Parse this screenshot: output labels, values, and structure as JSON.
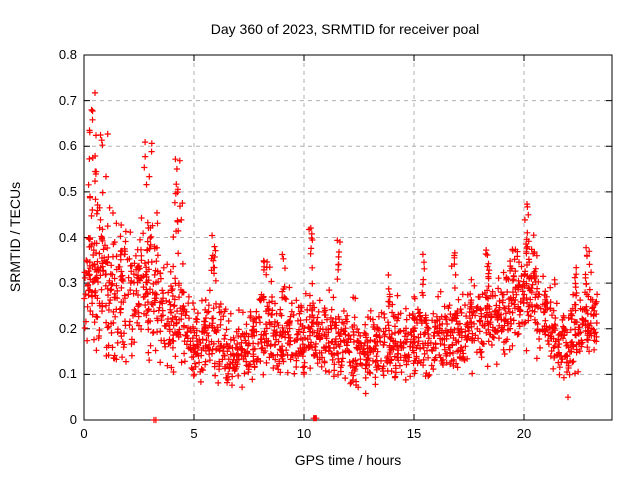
{
  "title": "Day 360 of 2023, SRMTID for receiver poal",
  "chart_data": {
    "type": "scatter",
    "title": "Day 360 of 2023, SRMTID for receiver poal",
    "xlabel": "GPS time / hours",
    "ylabel": "SRMTID / TECUs",
    "xlim": [
      0,
      24
    ],
    "ylim": [
      0,
      0.8
    ],
    "xticks": [
      0,
      5,
      10,
      15,
      20
    ],
    "yticks": [
      0,
      0.1,
      0.2,
      0.3,
      0.4,
      0.5,
      0.6,
      0.7,
      0.8
    ],
    "xtick_labels": [
      "0",
      "5",
      "10",
      "15",
      "20"
    ],
    "ytick_labels": [
      "0",
      "0.1",
      "0.2",
      "0.3",
      "0.4",
      "0.5",
      "0.6",
      "0.7",
      "0.8"
    ],
    "grid": "dashed-major",
    "legend": "none",
    "marker": "plus",
    "marker_color": "#ff0000",
    "grid_color": "#b0b0b0",
    "axis_color": "#000000",
    "background_color": "#ffffff",
    "seed": 2023360,
    "profile_format": "band_profile rows = [hour_start, hour_width, n_points, y_center, y_sigma, y_min, y_max] estimated from pixels",
    "band_profile": [
      [
        0.0,
        0.5,
        44,
        0.3,
        0.08,
        0.17,
        0.5
      ],
      [
        0.5,
        0.5,
        46,
        0.31,
        0.09,
        0.15,
        0.52
      ],
      [
        1.0,
        0.5,
        44,
        0.28,
        0.08,
        0.13,
        0.5
      ],
      [
        1.5,
        0.5,
        42,
        0.27,
        0.08,
        0.12,
        0.48
      ],
      [
        2.0,
        0.5,
        42,
        0.27,
        0.07,
        0.12,
        0.46
      ],
      [
        2.5,
        0.5,
        42,
        0.28,
        0.08,
        0.12,
        0.5
      ],
      [
        3.0,
        0.5,
        44,
        0.28,
        0.09,
        0.1,
        0.55
      ],
      [
        3.5,
        0.5,
        40,
        0.22,
        0.06,
        0.1,
        0.38
      ],
      [
        4.0,
        0.5,
        40,
        0.22,
        0.06,
        0.1,
        0.4
      ],
      [
        4.5,
        0.5,
        40,
        0.19,
        0.05,
        0.08,
        0.33
      ],
      [
        5.0,
        0.5,
        40,
        0.17,
        0.05,
        0.08,
        0.3
      ],
      [
        5.5,
        0.5,
        40,
        0.19,
        0.05,
        0.09,
        0.36
      ],
      [
        6.0,
        0.5,
        40,
        0.17,
        0.05,
        0.08,
        0.32
      ],
      [
        6.5,
        0.5,
        40,
        0.15,
        0.04,
        0.07,
        0.26
      ],
      [
        7.0,
        0.5,
        40,
        0.16,
        0.04,
        0.07,
        0.28
      ],
      [
        7.5,
        0.5,
        40,
        0.17,
        0.05,
        0.08,
        0.3
      ],
      [
        8.0,
        0.5,
        42,
        0.19,
        0.05,
        0.09,
        0.33
      ],
      [
        8.5,
        0.5,
        42,
        0.18,
        0.05,
        0.09,
        0.32
      ],
      [
        9.0,
        0.5,
        42,
        0.19,
        0.05,
        0.1,
        0.34
      ],
      [
        9.5,
        0.5,
        40,
        0.17,
        0.05,
        0.08,
        0.31
      ],
      [
        10.0,
        0.5,
        42,
        0.19,
        0.05,
        0.1,
        0.35
      ],
      [
        10.5,
        0.5,
        42,
        0.19,
        0.05,
        0.1,
        0.33
      ],
      [
        11.0,
        0.5,
        42,
        0.18,
        0.05,
        0.09,
        0.34
      ],
      [
        11.5,
        0.5,
        40,
        0.17,
        0.05,
        0.08,
        0.32
      ],
      [
        12.0,
        0.5,
        40,
        0.16,
        0.05,
        0.07,
        0.3
      ],
      [
        12.5,
        0.5,
        40,
        0.15,
        0.05,
        0.05,
        0.28
      ],
      [
        13.0,
        0.5,
        40,
        0.16,
        0.05,
        0.06,
        0.3
      ],
      [
        13.5,
        0.5,
        40,
        0.17,
        0.05,
        0.08,
        0.31
      ],
      [
        14.0,
        0.5,
        40,
        0.18,
        0.05,
        0.09,
        0.32
      ],
      [
        14.5,
        0.5,
        40,
        0.17,
        0.05,
        0.08,
        0.31
      ],
      [
        15.0,
        0.5,
        42,
        0.19,
        0.05,
        0.1,
        0.34
      ],
      [
        15.5,
        0.5,
        40,
        0.18,
        0.05,
        0.09,
        0.32
      ],
      [
        16.0,
        0.5,
        40,
        0.19,
        0.05,
        0.1,
        0.34
      ],
      [
        16.5,
        0.5,
        40,
        0.2,
        0.05,
        0.1,
        0.36
      ],
      [
        17.0,
        0.5,
        40,
        0.19,
        0.05,
        0.1,
        0.34
      ],
      [
        17.5,
        0.5,
        40,
        0.21,
        0.05,
        0.1,
        0.37
      ],
      [
        18.0,
        0.5,
        42,
        0.23,
        0.06,
        0.11,
        0.38
      ],
      [
        18.5,
        0.5,
        40,
        0.22,
        0.05,
        0.1,
        0.37
      ],
      [
        19.0,
        0.5,
        42,
        0.24,
        0.06,
        0.12,
        0.4
      ],
      [
        19.5,
        0.5,
        42,
        0.27,
        0.06,
        0.14,
        0.43
      ],
      [
        20.0,
        0.5,
        42,
        0.28,
        0.07,
        0.14,
        0.45
      ],
      [
        20.5,
        0.5,
        40,
        0.24,
        0.06,
        0.12,
        0.38
      ],
      [
        21.0,
        0.5,
        40,
        0.21,
        0.05,
        0.08,
        0.33
      ],
      [
        21.5,
        0.5,
        40,
        0.17,
        0.05,
        0.06,
        0.3
      ],
      [
        22.0,
        0.5,
        40,
        0.19,
        0.06,
        0.08,
        0.35
      ],
      [
        22.5,
        0.5,
        42,
        0.22,
        0.05,
        0.12,
        0.37
      ],
      [
        23.0,
        0.35,
        26,
        0.21,
        0.04,
        0.13,
        0.31
      ]
    ],
    "wave_format": "wave_events rows = [x_center, x_width, y_min, y_max, n_points] vertical streak clusters",
    "wave_events": [
      [
        0.7,
        1.0,
        0.28,
        0.68,
        38
      ],
      [
        1.5,
        0.4,
        0.22,
        0.52,
        12
      ],
      [
        2.85,
        0.5,
        0.25,
        0.63,
        18
      ],
      [
        4.3,
        0.5,
        0.3,
        0.6,
        18
      ],
      [
        5.85,
        0.3,
        0.26,
        0.41,
        12
      ],
      [
        8.35,
        0.4,
        0.26,
        0.35,
        12
      ],
      [
        9.1,
        0.2,
        0.26,
        0.37,
        8
      ],
      [
        10.3,
        0.2,
        0.28,
        0.43,
        9
      ],
      [
        11.6,
        0.25,
        0.26,
        0.4,
        8
      ],
      [
        13.9,
        0.2,
        0.24,
        0.33,
        6
      ],
      [
        15.4,
        0.2,
        0.26,
        0.37,
        7
      ],
      [
        16.8,
        0.2,
        0.27,
        0.4,
        7
      ],
      [
        18.35,
        0.25,
        0.28,
        0.38,
        9
      ],
      [
        19.45,
        0.2,
        0.3,
        0.41,
        8
      ],
      [
        20.1,
        0.25,
        0.3,
        0.475,
        14
      ],
      [
        22.35,
        0.15,
        0.24,
        0.36,
        8
      ],
      [
        22.9,
        0.3,
        0.24,
        0.38,
        10
      ]
    ],
    "outliers": [
      [
        0.5,
        0.717
      ],
      [
        3.18,
        0.0
      ],
      [
        3.27,
        0.0
      ],
      [
        10.44,
        0.004
      ],
      [
        10.47,
        0.004
      ],
      [
        10.5,
        0.004
      ],
      [
        10.53,
        0.004
      ],
      [
        10.56,
        0.004
      ],
      [
        22.0,
        0.05
      ]
    ]
  }
}
